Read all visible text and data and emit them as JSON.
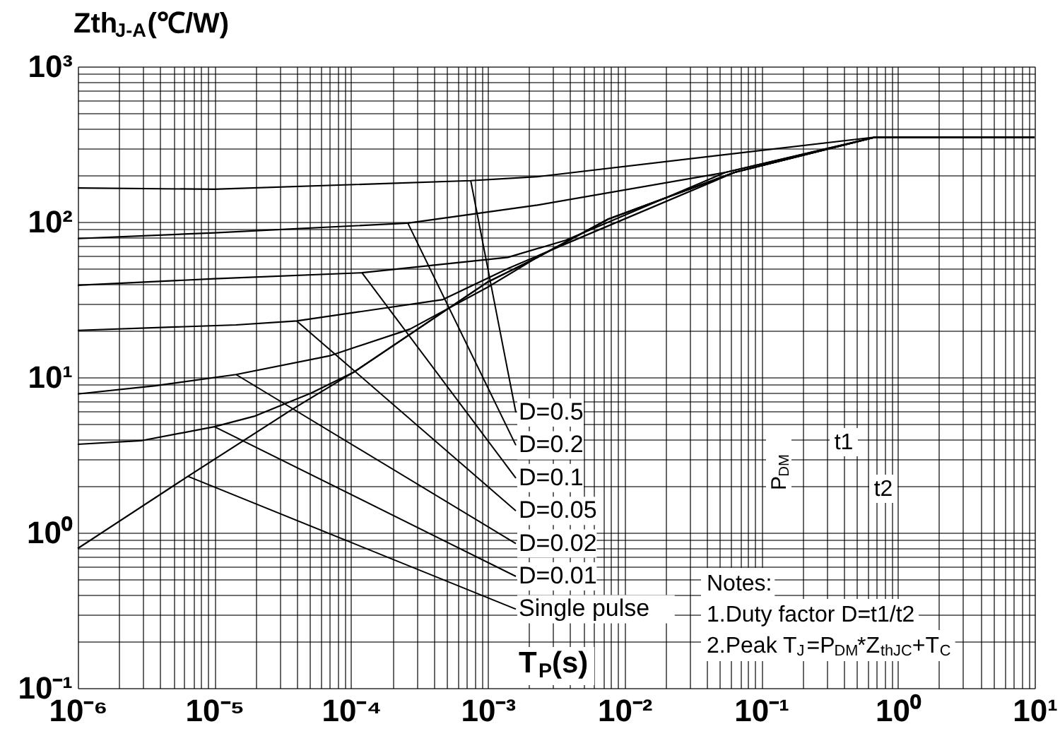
{
  "chart_data": {
    "type": "line",
    "ylabel": "Zth$_{J-A}$(℃/W)",
    "xlabel": "T$_{P}$(s)",
    "log": "xy",
    "grid": true,
    "line_style": "solid",
    "xlim": [
      1e-06,
      10
    ],
    "ylim": [
      0.1,
      1000
    ],
    "xticks": [
      {
        "value": 1e-06,
        "label": "10⁻⁶"
      },
      {
        "value": 2e-06,
        "label": null
      },
      {
        "value": 3e-06,
        "label": null
      },
      {
        "value": 4e-06,
        "label": null
      },
      {
        "value": 5e-06,
        "label": null
      },
      {
        "value": 6e-06,
        "label": null
      },
      {
        "value": 7e-06,
        "label": null
      },
      {
        "value": 8e-06,
        "label": null
      },
      {
        "value": 9e-06,
        "label": null
      },
      {
        "value": 1e-05,
        "label": "10⁻⁵"
      },
      {
        "value": 2e-05,
        "label": null
      },
      {
        "value": 3e-05,
        "label": null
      },
      {
        "value": 4e-05,
        "label": null
      },
      {
        "value": 5e-05,
        "label": null
      },
      {
        "value": 6e-05,
        "label": null
      },
      {
        "value": 7e-05,
        "label": null
      },
      {
        "value": 8e-05,
        "label": null
      },
      {
        "value": 9e-05,
        "label": null
      },
      {
        "value": 0.0001,
        "label": "10⁻⁴"
      },
      {
        "value": 0.0002,
        "label": null
      },
      {
        "value": 0.0003,
        "label": null
      },
      {
        "value": 0.0004,
        "label": null
      },
      {
        "value": 0.0005,
        "label": null
      },
      {
        "value": 0.0006,
        "label": null
      },
      {
        "value": 0.0007,
        "label": null
      },
      {
        "value": 0.0008,
        "label": null
      },
      {
        "value": 0.0009,
        "label": null
      },
      {
        "value": 0.001,
        "label": "10⁻³"
      },
      {
        "value": 0.002,
        "label": null
      },
      {
        "value": 0.003,
        "label": null
      },
      {
        "value": 0.004,
        "label": null
      },
      {
        "value": 0.005,
        "label": null
      },
      {
        "value": 0.006,
        "label": null
      },
      {
        "value": 0.007,
        "label": null
      },
      {
        "value": 0.008,
        "label": null
      },
      {
        "value": 0.009,
        "label": null
      },
      {
        "value": 0.01,
        "label": "10⁻²"
      },
      {
        "value": 0.02,
        "label": null
      },
      {
        "value": 0.03,
        "label": null
      },
      {
        "value": 0.04,
        "label": null
      },
      {
        "value": 0.05,
        "label": null
      },
      {
        "value": 0.06,
        "label": null
      },
      {
        "value": 0.07,
        "label": null
      },
      {
        "value": 0.08,
        "label": null
      },
      {
        "value": 0.09,
        "label": null
      },
      {
        "value": 0.1,
        "label": "10⁻¹"
      },
      {
        "value": 0.2,
        "label": null
      },
      {
        "value": 0.3,
        "label": null
      },
      {
        "value": 0.4,
        "label": null
      },
      {
        "value": 0.5,
        "label": null
      },
      {
        "value": 0.6,
        "label": null
      },
      {
        "value": 0.7,
        "label": null
      },
      {
        "value": 0.8,
        "label": null
      },
      {
        "value": 0.9,
        "label": null
      },
      {
        "value": 1,
        "label": "10⁰"
      },
      {
        "value": 2,
        "label": null
      },
      {
        "value": 3,
        "label": null
      },
      {
        "value": 4,
        "label": null
      },
      {
        "value": 5,
        "label": null
      },
      {
        "value": 6,
        "label": null
      },
      {
        "value": 7,
        "label": null
      },
      {
        "value": 8,
        "label": null
      },
      {
        "value": 9,
        "label": null
      },
      {
        "value": 10,
        "label": "10¹"
      }
    ],
    "yticks": [
      {
        "value": 0.1,
        "label": "10⁻¹"
      },
      {
        "value": 0.2,
        "label": null
      },
      {
        "value": 0.3,
        "label": null
      },
      {
        "value": 0.4,
        "label": null
      },
      {
        "value": 0.5,
        "label": null
      },
      {
        "value": 0.6,
        "label": null
      },
      {
        "value": 0.7,
        "label": null
      },
      {
        "value": 0.8,
        "label": null
      },
      {
        "value": 0.9,
        "label": null
      },
      {
        "value": 1,
        "label": "10⁰"
      },
      {
        "value": 2,
        "label": null
      },
      {
        "value": 3,
        "label": null
      },
      {
        "value": 4,
        "label": null
      },
      {
        "value": 5,
        "label": null
      },
      {
        "value": 6,
        "label": null
      },
      {
        "value": 7,
        "label": null
      },
      {
        "value": 8,
        "label": null
      },
      {
        "value": 9,
        "label": null
      },
      {
        "value": 10,
        "label": "10¹"
      },
      {
        "value": 20,
        "label": null
      },
      {
        "value": 30,
        "label": null
      },
      {
        "value": 40,
        "label": null
      },
      {
        "value": 50,
        "label": null
      },
      {
        "value": 60,
        "label": null
      },
      {
        "value": 70,
        "label": null
      },
      {
        "value": 80,
        "label": null
      },
      {
        "value": 90,
        "label": null
      },
      {
        "value": 100,
        "label": "10²"
      },
      {
        "value": 200,
        "label": null
      },
      {
        "value": 300,
        "label": null
      },
      {
        "value": 400,
        "label": null
      },
      {
        "value": 500,
        "label": null
      },
      {
        "value": 600,
        "label": null
      },
      {
        "value": 700,
        "label": null
      },
      {
        "value": 800,
        "label": null
      },
      {
        "value": 900,
        "label": null
      },
      {
        "value": 1000,
        "label": "10³"
      }
    ],
    "series": [
      {
        "color": "#000000",
        "x": [
          1e-06,
          1e-05,
          0.00075,
          0.0023,
          0.69,
          10
        ],
        "values": [
          165,
          162,
          184,
          195,
          351,
          351
        ]
      },
      {
        "color": "#000000",
        "x": [
          1e-06,
          1e-05,
          0.00026,
          0.0023,
          0.055,
          0.69,
          10
        ],
        "values": [
          78,
          85,
          98,
          128,
          208,
          351,
          351
        ]
      },
      {
        "color": "#000000",
        "x": [
          1e-06,
          1e-05,
          0.00012,
          0.0014,
          0.0037,
          0.055,
          0.69,
          10
        ],
        "values": [
          39,
          43,
          47,
          59,
          76,
          208,
          351,
          351
        ]
      },
      {
        "color": "#000000",
        "x": [
          1e-06,
          1.44e-05,
          4e-05,
          0.00047,
          0.0014,
          0.0037,
          0.064,
          0.69,
          10
        ],
        "values": [
          20,
          21.7,
          23,
          31.6,
          50,
          72,
          208,
          351,
          351
        ]
      },
      {
        "color": "#000000",
        "x": [
          1e-06,
          3.7e-06,
          1.44e-05,
          6.9e-05,
          0.00027,
          0.001,
          0.0023,
          0.0076,
          0.064,
          0.69,
          10
        ],
        "values": [
          7.8,
          8.8,
          10.4,
          13.7,
          20.4,
          38,
          59,
          104,
          208,
          351,
          351
        ]
      },
      {
        "color": "#000000",
        "x": [
          1e-06,
          2.9e-06,
          1e-05,
          1.95e-05,
          5.1e-05,
          0.000105,
          0.001,
          0.0023,
          0.0076,
          0.064,
          0.69,
          10
        ],
        "values": [
          3.7,
          3.9,
          4.8,
          5.6,
          7.9,
          10.8,
          41,
          59,
          104,
          208,
          351,
          351
        ]
      },
      {
        "color": "#000000",
        "x": [
          1e-06,
          6.4e-06,
          3.7e-05,
          0.000105,
          0.001,
          0.0023,
          0.0076,
          0.064,
          0.69,
          10
        ],
        "values": [
          0.79,
          2.3,
          6.2,
          10.8,
          41,
          59,
          104,
          208,
          351,
          351
        ]
      }
    ],
    "annotations": [
      {
        "text": "D=0.5",
        "x": 0.00075,
        "y": 184
      },
      {
        "text": "D=0.2",
        "x": 0.00026,
        "y": 98
      },
      {
        "text": "D=0.1",
        "x": 0.00012,
        "y": 47
      },
      {
        "text": "D=0.05",
        "x": 4e-05,
        "y": 23
      },
      {
        "text": "D=0.02",
        "x": 1.44e-05,
        "y": 10.4
      },
      {
        "text": "D=0.01",
        "x": 1e-05,
        "y": 4.8
      },
      {
        "text": "Single pulse",
        "x": 6.4e-06,
        "y": 2.3
      },
      "Notes:",
      "1.Duty factor D=t1/t2",
      "2.Peak T$_{J}$=P$_{DM}$*Z$_{thJC}$+T$_{C}$",
      "t1",
      "t2",
      "P$_{DM}$"
    ]
  }
}
